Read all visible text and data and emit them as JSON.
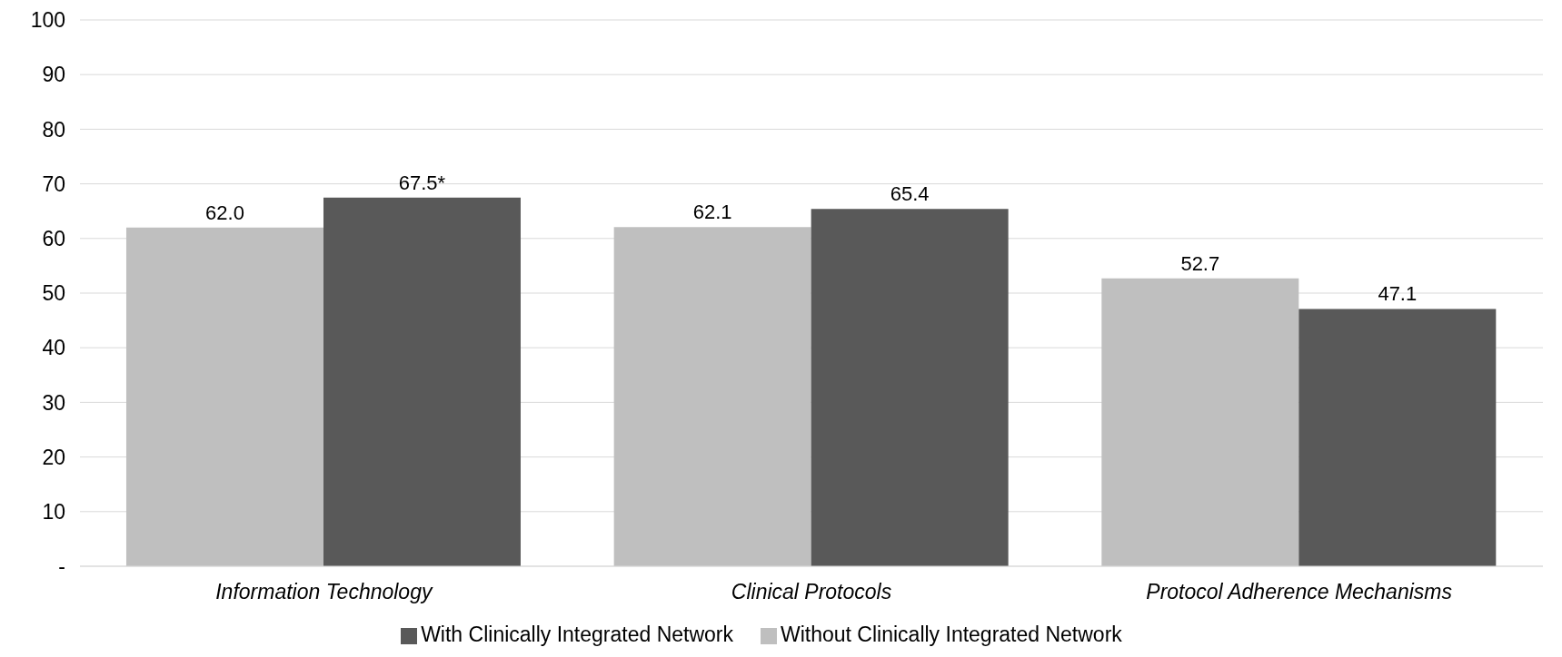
{
  "chart_data": {
    "type": "bar",
    "categories": [
      "Information Technology",
      "Clinical Protocols",
      "Protocol Adherence Mechanisms"
    ],
    "series": [
      {
        "name": "Without Clinically Integrated Network",
        "color": "#bfbfbf",
        "values": [
          62.0,
          62.1,
          52.7
        ],
        "value_labels": [
          "62.0",
          "62.1",
          "52.7"
        ]
      },
      {
        "name": "With Clinically Integrated Network",
        "color": "#595959",
        "values": [
          67.5,
          65.4,
          47.1
        ],
        "value_labels": [
          "67.5*",
          "65.4",
          "47.1"
        ]
      }
    ],
    "ylim": [
      0,
      100
    ],
    "yticks": [
      {
        "value": 0,
        "label": "-"
      },
      10,
      20,
      30,
      40,
      50,
      60,
      70,
      80,
      90,
      100
    ],
    "grid": "y",
    "legend": "bottom"
  }
}
